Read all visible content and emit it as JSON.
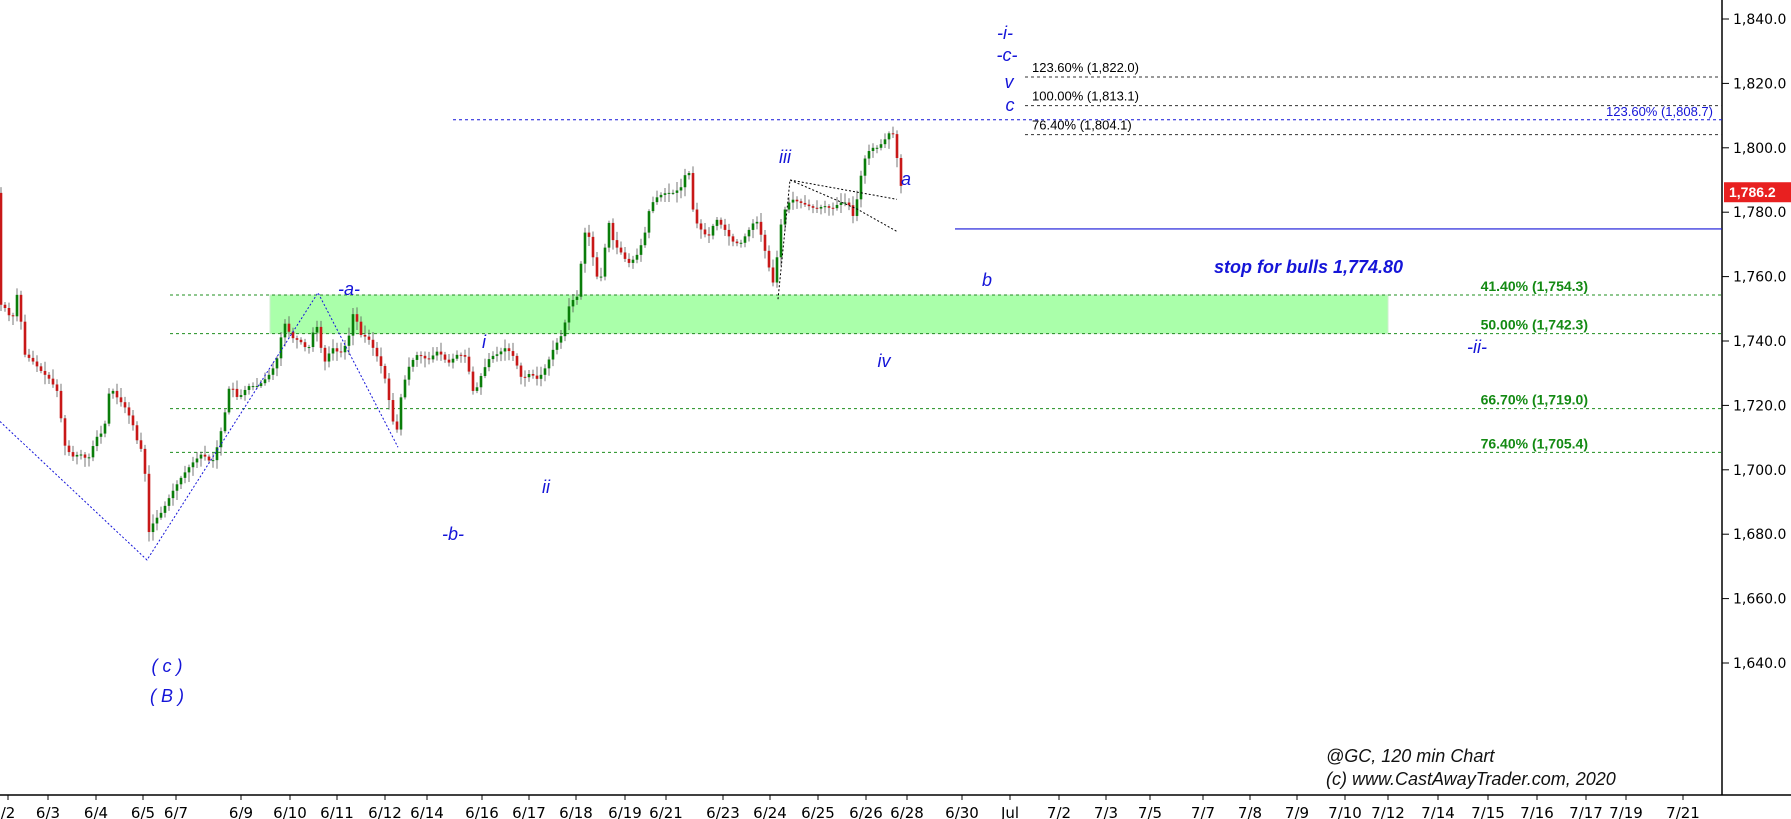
{
  "chart_data": {
    "type": "candlestick",
    "ylim": [
      1630,
      1845
    ],
    "y_ticks": [
      "1,640.0",
      "1,660.0",
      "1,680.0",
      "1,700.0",
      "1,720.0",
      "1,740.0",
      "1,760.0",
      "1,780.0",
      "1,800.0",
      "1,820.0",
      "1,840.0"
    ],
    "y_tick_values": [
      1640,
      1660,
      1680,
      1700,
      1720,
      1740,
      1760,
      1780,
      1800,
      1820,
      1840
    ],
    "x_ticks": [
      "/2",
      "6/3",
      "6/4",
      "6/5",
      "6/7",
      "6/9",
      "6/10",
      "6/11",
      "6/12",
      "6/14",
      "6/16",
      "6/17",
      "6/18",
      "6/19",
      "6/21",
      "6/23",
      "6/24",
      "6/25",
      "6/26",
      "6/28",
      "6/30",
      "Jul",
      "7/2",
      "7/3",
      "7/5",
      "7/7",
      "7/8",
      "7/9",
      "7/10",
      "7/12",
      "7/14",
      "7/15",
      "7/16",
      "7/17",
      "7/19",
      "7/21"
    ],
    "price_path": [
      [
        0,
        1752
      ],
      [
        8,
        1750
      ],
      [
        14,
        1746
      ],
      [
        20,
        1756
      ],
      [
        26,
        1736
      ],
      [
        34,
        1734
      ],
      [
        42,
        1731
      ],
      [
        52,
        1728
      ],
      [
        60,
        1724
      ],
      [
        66,
        1708
      ],
      [
        74,
        1704
      ],
      [
        82,
        1705
      ],
      [
        90,
        1703
      ],
      [
        98,
        1710
      ],
      [
        106,
        1712
      ],
      [
        112,
        1726
      ],
      [
        120,
        1722
      ],
      [
        126,
        1720
      ],
      [
        134,
        1715
      ],
      [
        140,
        1708
      ],
      [
        146,
        1705
      ],
      [
        150,
        1680
      ],
      [
        156,
        1684
      ],
      [
        164,
        1687
      ],
      [
        174,
        1693
      ],
      [
        184,
        1698
      ],
      [
        194,
        1702
      ],
      [
        204,
        1705
      ],
      [
        214,
        1702
      ],
      [
        220,
        1708
      ],
      [
        226,
        1716
      ],
      [
        232,
        1727
      ],
      [
        240,
        1722
      ],
      [
        250,
        1726
      ],
      [
        260,
        1726
      ],
      [
        270,
        1729
      ],
      [
        278,
        1733
      ],
      [
        286,
        1746
      ],
      [
        294,
        1741
      ],
      [
        302,
        1740
      ],
      [
        310,
        1737
      ],
      [
        318,
        1746
      ],
      [
        326,
        1733
      ],
      [
        334,
        1738
      ],
      [
        342,
        1736
      ],
      [
        350,
        1740
      ],
      [
        356,
        1750
      ],
      [
        362,
        1742
      ],
      [
        370,
        1741
      ],
      [
        378,
        1736
      ],
      [
        386,
        1730
      ],
      [
        392,
        1720
      ],
      [
        398,
        1710
      ],
      [
        404,
        1725
      ],
      [
        412,
        1733
      ],
      [
        420,
        1736
      ],
      [
        430,
        1734
      ],
      [
        440,
        1737
      ],
      [
        450,
        1733
      ],
      [
        460,
        1736
      ],
      [
        468,
        1735
      ],
      [
        476,
        1723
      ],
      [
        484,
        1730
      ],
      [
        492,
        1735
      ],
      [
        500,
        1736
      ],
      [
        508,
        1738
      ],
      [
        516,
        1735
      ],
      [
        524,
        1728
      ],
      [
        532,
        1730
      ],
      [
        540,
        1728
      ],
      [
        548,
        1732
      ],
      [
        556,
        1738
      ],
      [
        564,
        1742
      ],
      [
        572,
        1752
      ],
      [
        580,
        1754
      ],
      [
        586,
        1774
      ],
      [
        592,
        1772
      ],
      [
        598,
        1760
      ],
      [
        604,
        1760
      ],
      [
        610,
        1778
      ],
      [
        616,
        1770
      ],
      [
        622,
        1768
      ],
      [
        630,
        1764
      ],
      [
        638,
        1766
      ],
      [
        646,
        1772
      ],
      [
        652,
        1782
      ],
      [
        660,
        1785
      ],
      [
        668,
        1786
      ],
      [
        676,
        1786
      ],
      [
        684,
        1788
      ],
      [
        690,
        1795
      ],
      [
        696,
        1778
      ],
      [
        702,
        1775
      ],
      [
        710,
        1772
      ],
      [
        718,
        1778
      ],
      [
        726,
        1775
      ],
      [
        734,
        1771
      ],
      [
        742,
        1770
      ],
      [
        750,
        1774
      ],
      [
        758,
        1778
      ],
      [
        764,
        1772
      ],
      [
        770,
        1764
      ],
      [
        776,
        1757
      ],
      [
        782,
        1775
      ],
      [
        788,
        1782
      ],
      [
        794,
        1784
      ],
      [
        802,
        1783
      ],
      [
        810,
        1782
      ],
      [
        818,
        1781
      ],
      [
        826,
        1782
      ],
      [
        834,
        1781
      ],
      [
        842,
        1783
      ],
      [
        850,
        1783
      ],
      [
        856,
        1778
      ],
      [
        862,
        1790
      ],
      [
        868,
        1798
      ],
      [
        874,
        1800
      ],
      [
        880,
        1800
      ],
      [
        888,
        1803
      ],
      [
        894,
        1806
      ],
      [
        898,
        1799
      ],
      [
        904,
        1786
      ]
    ],
    "last_price": "1,786.2",
    "fib_levels_right": [
      {
        "label": "41.40% (1,754.3)",
        "value": 1754.3
      },
      {
        "label": "50.00% (1,742.3)",
        "value": 1742.3
      },
      {
        "label": "66.70% (1,719.0)",
        "value": 1719.0
      },
      {
        "label": "76.40% (1,705.4)",
        "value": 1705.4
      }
    ],
    "fib_levels_top": [
      {
        "label": "123.60% (1,822.0)",
        "value": 1822.0
      },
      {
        "label": "100.00% (1,813.1)",
        "value": 1813.1
      },
      {
        "label": "76.40% (1,804.1)",
        "value": 1804.1
      }
    ],
    "fib_blue": {
      "label": "123.60% (1,808.7)",
      "value": 1808.7
    },
    "stop_line": {
      "label": "stop for bulls 1,774.80",
      "value": 1774.8
    },
    "wave_labels": {
      "c_paren": "( c )",
      "B_paren": "( B )",
      "a_minor": "-a-",
      "b_minor": "-b-",
      "i": "i",
      "ii": "ii",
      "iii": "iii",
      "iv": "iv",
      "a": "a",
      "b": "b",
      "c": "c",
      "v": "v",
      "c_minor": "-c-",
      "i_minor": "-i-",
      "ii_minor": "-ii-"
    },
    "credit_line1": "@GC, 120 min Chart",
    "credit_line2": "(c) www.CastAwayTrader.com, 2020",
    "colors": {
      "up": "#0a7d0a",
      "down": "#c81818",
      "wave": "#1515d8",
      "fib_green": "#138a13",
      "zone": "#aaffaa",
      "price_tag": "#e82020"
    }
  }
}
